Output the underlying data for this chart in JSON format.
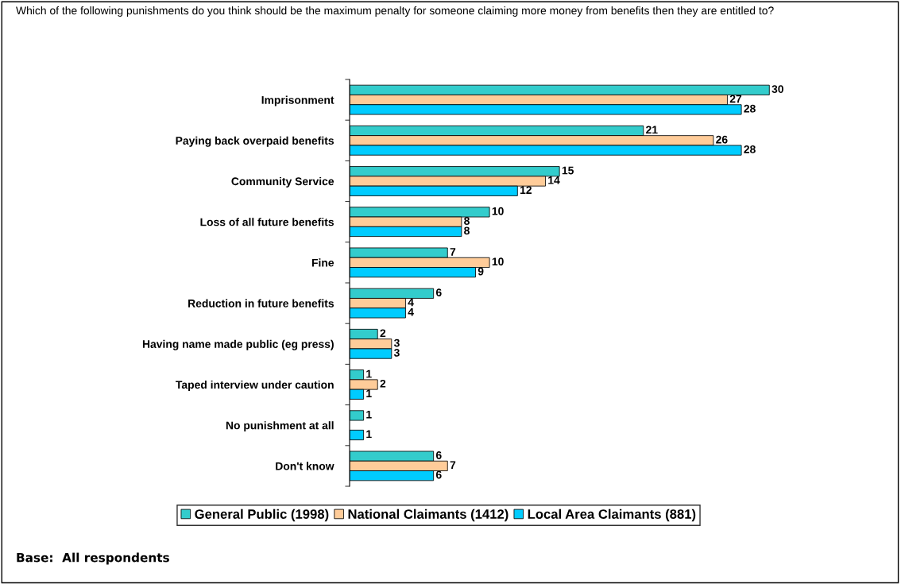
{
  "chart_data": {
    "type": "bar",
    "orientation": "horizontal",
    "title": "Which of the following punishments do you think should be the maximum penalty for someone claiming more money from benefits then they are entitled to?",
    "categories": [
      "Imprisonment",
      "Paying back overpaid benefits",
      "Community Service",
      "Loss of all future benefits",
      "Fine",
      "Reduction in future benefits",
      "Having name made public (eg press)",
      "Taped interview under caution",
      "No punishment at all",
      "Don't know"
    ],
    "series": [
      {
        "name": "General Public (1998)",
        "color": "#33cccc",
        "values": [
          30,
          21,
          15,
          10,
          7,
          6,
          2,
          1,
          1,
          6
        ]
      },
      {
        "name": "National Claimants (1412)",
        "color": "#ffcc99",
        "values": [
          27,
          26,
          14,
          8,
          10,
          4,
          3,
          2,
          null,
          7
        ]
      },
      {
        "name": "Local Area Claimants (881)",
        "color": "#00ccff",
        "values": [
          28,
          28,
          12,
          8,
          9,
          4,
          3,
          1,
          1,
          6
        ]
      }
    ],
    "data_labels": true,
    "legend": "bottom",
    "grid": false,
    "tick_labels": "y",
    "annotations": [
      "Base:  All respondents"
    ]
  }
}
